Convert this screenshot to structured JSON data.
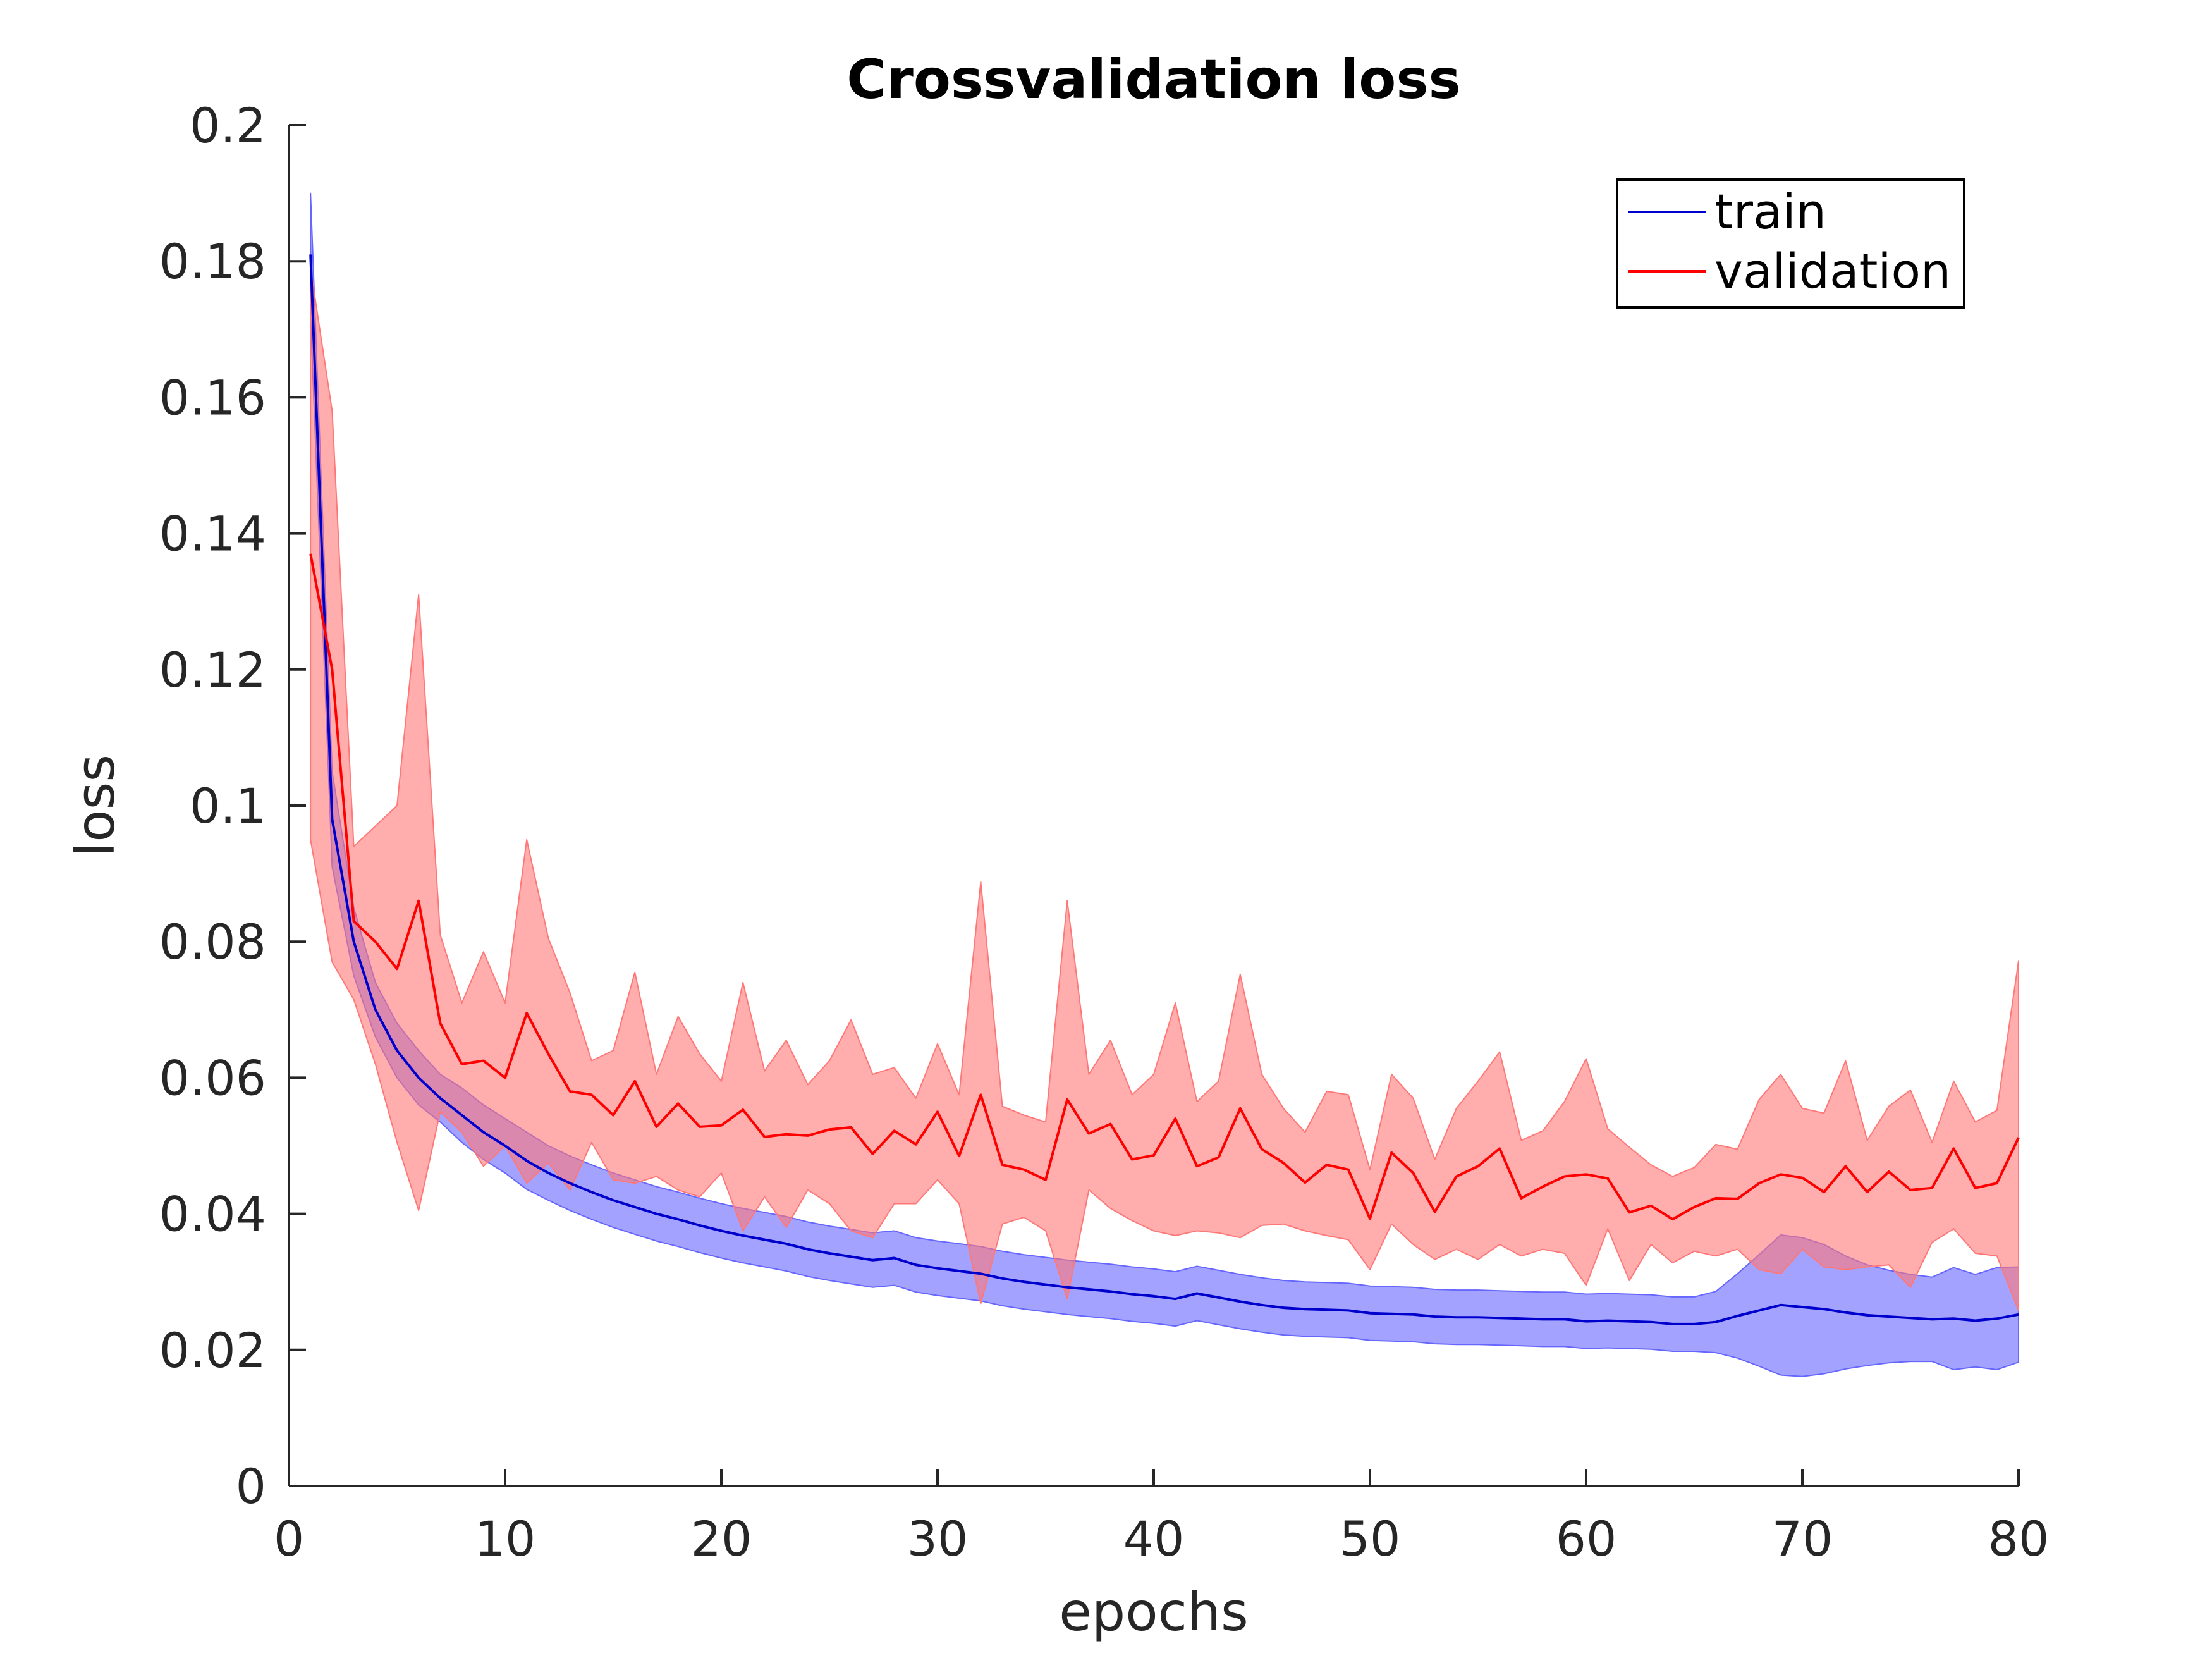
{
  "chart_data": {
    "type": "line",
    "title": "Crossvalidation loss",
    "xlabel": "epochs",
    "ylabel": "loss",
    "xlim": [
      0,
      80
    ],
    "ylim": [
      0,
      0.2
    ],
    "xticks": [
      0,
      10,
      20,
      30,
      40,
      50,
      60,
      70,
      80
    ],
    "xtick_labels": [
      "0",
      "10",
      "20",
      "30",
      "40",
      "50",
      "60",
      "70",
      "80"
    ],
    "yticks": [
      0,
      0.02,
      0.04,
      0.06,
      0.08,
      0.1,
      0.12,
      0.14,
      0.16,
      0.18,
      0.2
    ],
    "ytick_labels": [
      "0",
      "0.02",
      "0.04",
      "0.06",
      "0.08",
      "0.1",
      "0.12",
      "0.14",
      "0.16",
      "0.18",
      "0.2"
    ],
    "grid": false,
    "legend_position": "top-right",
    "series": [
      {
        "name": "train",
        "color": "#0000cc",
        "band_color": "#6666ff",
        "x": [
          1,
          2,
          3,
          4,
          5,
          6,
          7,
          8,
          9,
          10,
          11,
          12,
          13,
          14,
          15,
          16,
          17,
          18,
          19,
          20,
          21,
          22,
          23,
          24,
          25,
          26,
          27,
          28,
          29,
          30,
          31,
          32,
          33,
          34,
          35,
          36,
          37,
          38,
          39,
          40,
          41,
          42,
          43,
          44,
          45,
          46,
          47,
          48,
          49,
          50,
          51,
          52,
          53,
          54,
          55,
          56,
          57,
          58,
          59,
          60,
          61,
          62,
          63,
          64,
          65,
          66,
          67,
          68,
          69,
          70,
          71,
          72,
          73,
          74,
          75,
          76,
          77,
          78,
          79,
          80
        ],
        "mean": [
          0.181,
          0.098,
          0.08,
          0.07,
          0.064,
          0.06,
          0.057,
          0.0545,
          0.052,
          0.05,
          0.0478,
          0.046,
          0.0445,
          0.0432,
          0.042,
          0.041,
          0.04,
          0.0392,
          0.0383,
          0.0375,
          0.0368,
          0.0362,
          0.0356,
          0.0348,
          0.0342,
          0.0337,
          0.0332,
          0.0335,
          0.0325,
          0.032,
          0.0316,
          0.0312,
          0.0305,
          0.03,
          0.0296,
          0.0292,
          0.0289,
          0.0286,
          0.0282,
          0.0279,
          0.0275,
          0.0283,
          0.0277,
          0.0271,
          0.0266,
          0.0262,
          0.026,
          0.0259,
          0.0258,
          0.0254,
          0.0253,
          0.0252,
          0.0249,
          0.0248,
          0.0248,
          0.0247,
          0.0246,
          0.0245,
          0.0245,
          0.0242,
          0.0243,
          0.0242,
          0.0241,
          0.0238,
          0.0238,
          0.0241,
          0.025,
          0.0258,
          0.0266,
          0.0263,
          0.026,
          0.0255,
          0.0251,
          0.0249,
          0.0247,
          0.0245,
          0.0246,
          0.0243,
          0.0246,
          0.0252
        ],
        "lower": [
          0.172,
          0.091,
          0.075,
          0.066,
          0.06,
          0.056,
          0.0535,
          0.0505,
          0.048,
          0.046,
          0.0436,
          0.042,
          0.0405,
          0.0392,
          0.038,
          0.037,
          0.036,
          0.0352,
          0.0343,
          0.0335,
          0.0328,
          0.0322,
          0.0316,
          0.0308,
          0.0302,
          0.0297,
          0.0292,
          0.0295,
          0.0285,
          0.028,
          0.0276,
          0.0272,
          0.0265,
          0.026,
          0.0256,
          0.0252,
          0.0249,
          0.0246,
          0.0242,
          0.0239,
          0.0235,
          0.0243,
          0.0237,
          0.0231,
          0.0226,
          0.0222,
          0.022,
          0.0219,
          0.0218,
          0.0214,
          0.0213,
          0.0212,
          0.0209,
          0.0208,
          0.0208,
          0.0207,
          0.0206,
          0.0205,
          0.0205,
          0.0202,
          0.0203,
          0.0202,
          0.0201,
          0.0198,
          0.0198,
          0.0196,
          0.0188,
          0.0176,
          0.0163,
          0.0161,
          0.0165,
          0.0172,
          0.0177,
          0.0181,
          0.0183,
          0.0183,
          0.0171,
          0.0175,
          0.0171,
          0.0182
        ],
        "upper": [
          0.19,
          0.105,
          0.085,
          0.074,
          0.068,
          0.064,
          0.0605,
          0.0585,
          0.056,
          0.054,
          0.052,
          0.05,
          0.0485,
          0.0472,
          0.046,
          0.045,
          0.044,
          0.0432,
          0.0423,
          0.0415,
          0.0408,
          0.0402,
          0.0396,
          0.0388,
          0.0382,
          0.0377,
          0.0372,
          0.0375,
          0.0365,
          0.036,
          0.0356,
          0.0352,
          0.0345,
          0.034,
          0.0336,
          0.0332,
          0.0329,
          0.0326,
          0.0322,
          0.0319,
          0.0315,
          0.0323,
          0.0317,
          0.0311,
          0.0306,
          0.0302,
          0.03,
          0.0299,
          0.0298,
          0.0294,
          0.0293,
          0.0292,
          0.0289,
          0.0288,
          0.0288,
          0.0287,
          0.0286,
          0.0285,
          0.0285,
          0.0282,
          0.0283,
          0.0282,
          0.0281,
          0.0278,
          0.0278,
          0.0286,
          0.0312,
          0.034,
          0.0369,
          0.0365,
          0.0355,
          0.0338,
          0.0325,
          0.0317,
          0.0311,
          0.0307,
          0.0321,
          0.0311,
          0.0321,
          0.0322
        ]
      },
      {
        "name": "validation",
        "color": "#ff0000",
        "band_color": "#ff7777",
        "x": [
          1,
          2,
          3,
          4,
          5,
          6,
          7,
          8,
          9,
          10,
          11,
          12,
          13,
          14,
          15,
          16,
          17,
          18,
          19,
          20,
          21,
          22,
          23,
          24,
          25,
          26,
          27,
          28,
          29,
          30,
          31,
          32,
          33,
          34,
          35,
          36,
          37,
          38,
          39,
          40,
          41,
          42,
          43,
          44,
          45,
          46,
          47,
          48,
          49,
          50,
          51,
          52,
          53,
          54,
          55,
          56,
          57,
          58,
          59,
          60,
          61,
          62,
          63,
          64,
          65,
          66,
          67,
          68,
          69,
          70,
          71,
          72,
          73,
          74,
          75,
          76,
          77,
          78,
          79,
          80
        ],
        "mean": [
          0.137,
          0.12,
          0.083,
          0.08,
          0.076,
          0.086,
          0.068,
          0.062,
          0.0625,
          0.06,
          0.0695,
          0.0635,
          0.058,
          0.0575,
          0.0545,
          0.0595,
          0.0528,
          0.0562,
          0.0528,
          0.053,
          0.0553,
          0.0513,
          0.0517,
          0.0515,
          0.0524,
          0.0527,
          0.0488,
          0.0522,
          0.0502,
          0.055,
          0.0485,
          0.0575,
          0.0472,
          0.0465,
          0.045,
          0.0568,
          0.0518,
          0.0532,
          0.048,
          0.0486,
          0.054,
          0.047,
          0.0483,
          0.0555,
          0.0495,
          0.0475,
          0.0446,
          0.0472,
          0.0465,
          0.0393,
          0.049,
          0.046,
          0.0403,
          0.0455,
          0.047,
          0.0496,
          0.0423,
          0.044,
          0.0455,
          0.0458,
          0.0452,
          0.0402,
          0.0412,
          0.0392,
          0.041,
          0.0423,
          0.0422,
          0.0445,
          0.0458,
          0.0453,
          0.0432,
          0.047,
          0.0432,
          0.0462,
          0.0435,
          0.0438,
          0.0496,
          0.0438,
          0.0445,
          0.0512
        ],
        "lower": [
          0.095,
          0.077,
          0.0715,
          0.062,
          0.0505,
          0.0405,
          0.055,
          0.052,
          0.047,
          0.05,
          0.0445,
          0.0475,
          0.0435,
          0.0505,
          0.045,
          0.0445,
          0.0455,
          0.0435,
          0.0425,
          0.046,
          0.0375,
          0.0425,
          0.038,
          0.0435,
          0.0415,
          0.0375,
          0.0365,
          0.0415,
          0.0415,
          0.045,
          0.0415,
          0.0268,
          0.0385,
          0.0395,
          0.0375,
          0.0275,
          0.0435,
          0.0408,
          0.039,
          0.0375,
          0.0368,
          0.0375,
          0.0372,
          0.0365,
          0.0383,
          0.0385,
          0.0375,
          0.0368,
          0.0362,
          0.0318,
          0.0385,
          0.0355,
          0.0333,
          0.0348,
          0.0333,
          0.0355,
          0.0338,
          0.0348,
          0.0342,
          0.0295,
          0.0378,
          0.0302,
          0.0355,
          0.0328,
          0.0345,
          0.0338,
          0.0348,
          0.0318,
          0.0312,
          0.0348,
          0.0322,
          0.0318,
          0.0322,
          0.0325,
          0.0292,
          0.0358,
          0.0378,
          0.0342,
          0.0338,
          0.0258
        ],
        "upper": [
          0.179,
          0.158,
          0.094,
          0.097,
          0.1,
          0.131,
          0.081,
          0.071,
          0.0785,
          0.071,
          0.095,
          0.0805,
          0.0725,
          0.0625,
          0.064,
          0.0755,
          0.0605,
          0.069,
          0.0635,
          0.0595,
          0.074,
          0.061,
          0.0655,
          0.059,
          0.0625,
          0.0685,
          0.0605,
          0.0615,
          0.057,
          0.065,
          0.0575,
          0.0888,
          0.0558,
          0.0545,
          0.0535,
          0.086,
          0.0605,
          0.0655,
          0.0575,
          0.0605,
          0.071,
          0.0565,
          0.0595,
          0.0752,
          0.0605,
          0.0555,
          0.052,
          0.058,
          0.0575,
          0.0465,
          0.0605,
          0.057,
          0.048,
          0.0555,
          0.0595,
          0.0638,
          0.0508,
          0.0522,
          0.0565,
          0.0628,
          0.0525,
          0.0498,
          0.0472,
          0.0455,
          0.0468,
          0.0502,
          0.0495,
          0.0568,
          0.0605,
          0.0555,
          0.0548,
          0.0625,
          0.0508,
          0.0558,
          0.0582,
          0.0505,
          0.0595,
          0.0535,
          0.0552,
          0.0772
        ]
      }
    ]
  }
}
